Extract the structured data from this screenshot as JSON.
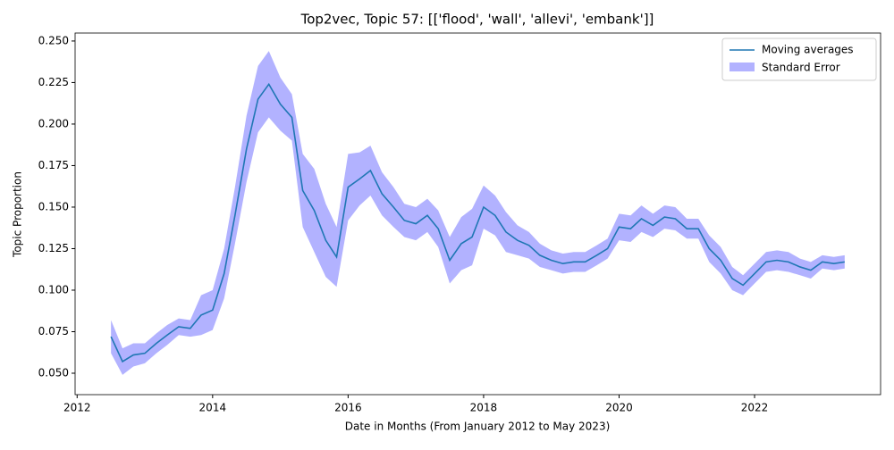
{
  "chart_data": {
    "type": "line",
    "title": "Top2vec, Topic 57: [['flood', 'wall', 'allevi', 'embank']]",
    "xlabel": "Date in Months (From January 2012 to May 2023)",
    "ylabel": "Topic Proportion",
    "x": [
      2012.5,
      2012.67,
      2012.83,
      2013,
      2013.17,
      2013.33,
      2013.5,
      2013.67,
      2013.83,
      2014,
      2014.17,
      2014.33,
      2014.5,
      2014.67,
      2014.83,
      2015,
      2015.17,
      2015.33,
      2015.5,
      2015.67,
      2015.83,
      2016,
      2016.17,
      2016.33,
      2016.5,
      2016.67,
      2016.83,
      2017,
      2017.17,
      2017.33,
      2017.5,
      2017.67,
      2017.83,
      2018,
      2018.17,
      2018.33,
      2018.5,
      2018.67,
      2018.83,
      2019,
      2019.17,
      2019.33,
      2019.5,
      2019.67,
      2019.83,
      2020,
      2020.17,
      2020.33,
      2020.5,
      2020.67,
      2020.83,
      2021,
      2021.17,
      2021.33,
      2021.5,
      2021.67,
      2021.83,
      2022,
      2022.17,
      2022.33,
      2022.5,
      2022.67,
      2022.83,
      2023,
      2023.17,
      2023.33
    ],
    "series": [
      {
        "name": "Moving averages",
        "color": "#1f77b4",
        "values": [
          0.072,
          0.057,
          0.061,
          0.062,
          0.068,
          0.073,
          0.078,
          0.077,
          0.085,
          0.088,
          0.11,
          0.145,
          0.185,
          0.215,
          0.224,
          0.212,
          0.204,
          0.16,
          0.148,
          0.13,
          0.12,
          0.162,
          0.167,
          0.172,
          0.158,
          0.15,
          0.142,
          0.14,
          0.145,
          0.137,
          0.118,
          0.128,
          0.132,
          0.15,
          0.145,
          0.135,
          0.13,
          0.127,
          0.121,
          0.118,
          0.116,
          0.117,
          0.117,
          0.121,
          0.125,
          0.138,
          0.137,
          0.143,
          0.139,
          0.144,
          0.143,
          0.137,
          0.137,
          0.125,
          0.118,
          0.107,
          0.103,
          0.11,
          0.117,
          0.118,
          0.117,
          0.114,
          0.112,
          0.117,
          0.116,
          0.117
        ]
      }
    ],
    "error_band": {
      "name": "Standard Error",
      "color": "#0000ff",
      "errors": [
        0.01,
        0.008,
        0.007,
        0.006,
        0.006,
        0.006,
        0.005,
        0.005,
        0.012,
        0.012,
        0.015,
        0.017,
        0.02,
        0.02,
        0.02,
        0.016,
        0.014,
        0.022,
        0.025,
        0.022,
        0.018,
        0.02,
        0.016,
        0.015,
        0.013,
        0.012,
        0.01,
        0.01,
        0.01,
        0.011,
        0.014,
        0.016,
        0.017,
        0.013,
        0.012,
        0.012,
        0.009,
        0.008,
        0.007,
        0.006,
        0.006,
        0.006,
        0.006,
        0.006,
        0.006,
        0.008,
        0.008,
        0.008,
        0.007,
        0.007,
        0.007,
        0.006,
        0.006,
        0.008,
        0.008,
        0.007,
        0.006,
        0.006,
        0.006,
        0.006,
        0.006,
        0.005,
        0.005,
        0.004,
        0.004,
        0.004
      ]
    },
    "xlim": [
      2011.97,
      2023.86
    ],
    "ylim": [
      0.0371,
      0.2548
    ],
    "xticks": [
      2012,
      2014,
      2016,
      2018,
      2020,
      2022
    ],
    "yticks": [
      {
        "value": 0.05,
        "label": "0.050"
      },
      {
        "value": 0.075,
        "label": "0.075"
      },
      {
        "value": 0.1,
        "label": "0.100"
      },
      {
        "value": 0.125,
        "label": "0.125"
      },
      {
        "value": 0.15,
        "label": "0.150"
      },
      {
        "value": 0.175,
        "label": "0.175"
      },
      {
        "value": 0.2,
        "label": "0.200"
      },
      {
        "value": 0.225,
        "label": "0.225"
      },
      {
        "value": 0.25,
        "label": "0.250"
      }
    ],
    "legend": "upper right"
  }
}
